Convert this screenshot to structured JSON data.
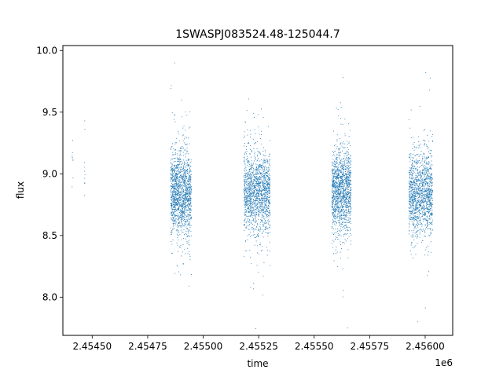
{
  "chart_data": {
    "type": "scatter",
    "title": "1SWASPJ083524.48-125044.7",
    "xlabel": "time",
    "ylabel": "flux",
    "x_offset_label": "1e6",
    "xlim": [
      2.454368,
      2.456124
    ],
    "ylim": [
      7.69,
      10.04
    ],
    "x_ticks": [
      2.4545,
      2.45475,
      2.455,
      2.45525,
      2.4555,
      2.45575,
      2.456
    ],
    "x_tick_labels": [
      "2.45450",
      "2.45475",
      "2.45500",
      "2.45525",
      "2.45550",
      "2.45575",
      "2.45600"
    ],
    "y_ticks": [
      8.0,
      8.5,
      9.0,
      9.5,
      10.0
    ],
    "y_tick_labels": [
      "8.0",
      "8.5",
      "9.0",
      "9.5",
      "10.0"
    ],
    "grid": false,
    "marker_color": "#1f77b4",
    "series": [
      {
        "season_clusters": [
          {
            "x_range": [
              2.454408,
              2.454412
            ],
            "y_center": 9.2,
            "y_spread": 0.2,
            "n_points": 8
          },
          {
            "x_range": [
              2.454463,
              2.454466
            ],
            "y_center": 9.1,
            "y_spread": 0.35,
            "n_points": 10
          },
          {
            "x_range": [
              2.454852,
              2.454945
            ],
            "y_center": 8.85,
            "y_spread": 0.3,
            "n_points": 1500
          },
          {
            "x_range": [
              2.455182,
              2.4553
            ],
            "y_center": 8.85,
            "y_spread": 0.3,
            "n_points": 1500
          },
          {
            "x_range": [
              2.455578,
              2.455665
            ],
            "y_center": 8.87,
            "y_spread": 0.3,
            "n_points": 1400
          },
          {
            "x_range": [
              2.455925,
              2.456032
            ],
            "y_center": 8.85,
            "y_spread": 0.3,
            "n_points": 1400
          }
        ]
      }
    ]
  }
}
